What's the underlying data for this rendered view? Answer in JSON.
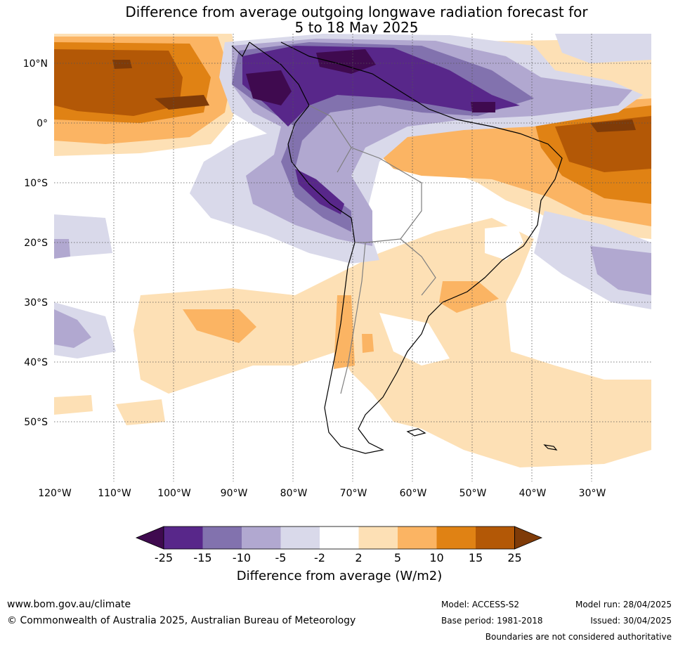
{
  "title": {
    "line1": "Difference from average outgoing longwave radiation forecast for",
    "line2": "5 to 18 May 2025"
  },
  "axes": {
    "lon_labels": [
      "120°W",
      "110°W",
      "100°W",
      "90°W",
      "80°W",
      "70°W",
      "60°W",
      "50°W",
      "40°W",
      "30°W"
    ],
    "lat_labels": [
      "10°N",
      "0°",
      "10°S",
      "20°S",
      "30°S",
      "40°S",
      "50°S"
    ]
  },
  "colorbar": {
    "title": "Difference from average (W/m2)",
    "ticks": [
      "-25",
      "-15",
      "-10",
      "-5",
      "-2",
      "2",
      "5",
      "10",
      "15",
      "25"
    ],
    "colors": [
      "#3f0a4f",
      "#58278a",
      "#8272ae",
      "#b1a8d0",
      "#d9d9ea",
      "#ffffff",
      "#fde0b5",
      "#fbb463",
      "#e08214",
      "#b35806",
      "#7f3b08"
    ]
  },
  "footer": {
    "website": "www.bom.gov.au/climate",
    "copyright": "© Commonwealth of Australia 2025, Australian Bureau of Meteorology",
    "model": "Model: ACCESS-S2",
    "base_period": "Base period: 1981-2018",
    "model_run": "Model run: 28/04/2025",
    "issued": "Issued: 30/04/2025",
    "disclaimer": "Boundaries are not considered authoritative"
  }
}
